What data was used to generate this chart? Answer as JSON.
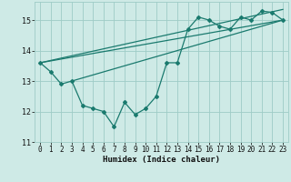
{
  "title": "",
  "xlabel": "Humidex (Indice chaleur)",
  "ylabel": "",
  "bg_color": "#ceeae6",
  "grid_color": "#9eccc6",
  "line_color": "#1a7a6e",
  "xlim": [
    -0.5,
    23.5
  ],
  "ylim": [
    11,
    15.6
  ],
  "xticks": [
    0,
    1,
    2,
    3,
    4,
    5,
    6,
    7,
    8,
    9,
    10,
    11,
    12,
    13,
    14,
    15,
    16,
    17,
    18,
    19,
    20,
    21,
    22,
    23
  ],
  "yticks": [
    11,
    12,
    13,
    14,
    15
  ],
  "series1_x": [
    0,
    1,
    2,
    3,
    4,
    5,
    6,
    7,
    8,
    9,
    10,
    11,
    12,
    13,
    14,
    15,
    16,
    17,
    18,
    19,
    20,
    21,
    22,
    23
  ],
  "series1_y": [
    13.6,
    13.3,
    12.9,
    13.0,
    12.2,
    12.1,
    12.0,
    11.5,
    12.3,
    11.9,
    12.1,
    12.5,
    13.6,
    13.6,
    14.7,
    15.1,
    15.0,
    14.8,
    14.7,
    15.1,
    15.0,
    15.3,
    15.25,
    15.0
  ],
  "line2_x": [
    0,
    23
  ],
  "line2_y": [
    13.6,
    15.0
  ],
  "line3_x": [
    0,
    23
  ],
  "line3_y": [
    13.6,
    15.35
  ],
  "line4_x": [
    3,
    23
  ],
  "line4_y": [
    13.0,
    15.0
  ]
}
